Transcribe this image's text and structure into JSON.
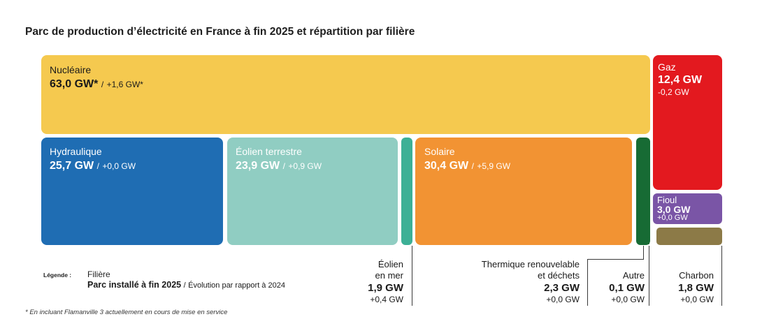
{
  "title": "Parc de production d’électricité en France à fin 2025 et répartition par filière",
  "chart_data": {
    "type": "treemap",
    "title": "Parc de production d’électricité en France à fin 2025 et répartition par filière",
    "unit": "GW",
    "series": [
      {
        "name": "Nucléaire",
        "value_label": "63,0 GW*",
        "evolution_label": "+1,6 GW*",
        "value": 63.0,
        "evolution": 1.6,
        "color": "#F5C94F"
      },
      {
        "name": "Hydraulique",
        "value_label": "25,7 GW",
        "evolution_label": "+0,0 GW",
        "value": 25.7,
        "evolution": 0.0,
        "color": "#1F6DB3"
      },
      {
        "name": "Éolien terrestre",
        "value_label": "23,9 GW",
        "evolution_label": "+0,9 GW",
        "value": 23.9,
        "evolution": 0.9,
        "color": "#90CDC2"
      },
      {
        "name": "Éolien en mer",
        "value_label": "1,9 GW",
        "evolution_label": "+0,4 GW",
        "value": 1.9,
        "evolution": 0.4,
        "color": "#3DB096"
      },
      {
        "name": "Solaire",
        "value_label": "30,4 GW",
        "evolution_label": "+5,9 GW",
        "value": 30.4,
        "evolution": 5.9,
        "color": "#F29333"
      },
      {
        "name": "Thermique renouvelable et déchets",
        "value_label": "2,3 GW",
        "evolution_label": "+0,0 GW",
        "value": 2.3,
        "evolution": 0.0,
        "color": "#176B34"
      },
      {
        "name": "Autre",
        "value_label": "0,1 GW",
        "evolution_label": "+0,0 GW",
        "value": 0.1,
        "evolution": 0.0,
        "color": "#176B34"
      },
      {
        "name": "Gaz",
        "value_label": "12,4 GW",
        "evolution_label": "-0,2 GW",
        "value": 12.4,
        "evolution": -0.2,
        "color": "#E3191F"
      },
      {
        "name": "Fioul",
        "value_label": "3,0 GW",
        "evolution_label": "+0,0 GW",
        "value": 3.0,
        "evolution": 0.0,
        "color": "#7A55A6"
      },
      {
        "name": "Charbon",
        "value_label": "1,8 GW",
        "evolution_label": "+0,0 GW",
        "value": 1.8,
        "evolution": 0.0,
        "color": "#8C7A47"
      }
    ]
  },
  "callouts": {
    "eolien_mer": {
      "name_line1": "Éolien",
      "name_line2": "en mer"
    },
    "thermique": {
      "name_line1": "Thermique renouvelable",
      "name_line2": "et déchets"
    }
  },
  "legend": {
    "key": "Légende :",
    "filiere": "Filière",
    "parc": "Parc installé à fin 2025",
    "evolution": "Évolution par rapport à 2024"
  },
  "separator": "/",
  "footnote": "* En incluant Flamanville 3 actuellement en cours de mise en service"
}
